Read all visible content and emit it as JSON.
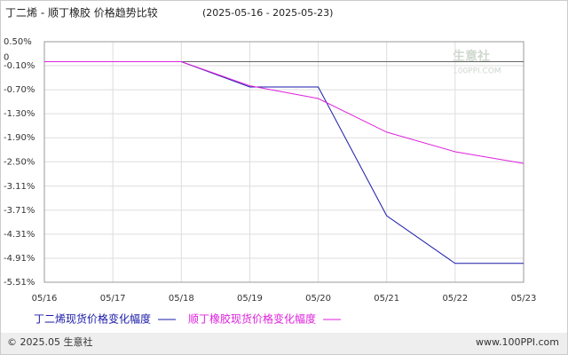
{
  "chart_data": {
    "type": "line",
    "title": "丁二烯 - 顺丁橡胶 价格趋势比较",
    "subtitle": "(2025-05-16 - 2025-05-23)",
    "categories": [
      "05/16",
      "05/17",
      "05/18",
      "05/19",
      "05/20",
      "05/21",
      "05/22",
      "05/23"
    ],
    "series": [
      {
        "name": "丁二烯现货价格变化幅度",
        "color": "#1a1aaa",
        "values": [
          0,
          0,
          0,
          -0.63,
          -0.63,
          -3.85,
          -5.04,
          -5.04
        ]
      },
      {
        "name": "顺丁橡胶现货价格变化幅度",
        "color": "#dd22dd",
        "values": [
          0,
          0,
          0,
          -0.6,
          -0.92,
          -1.76,
          -2.25,
          -2.54
        ]
      }
    ],
    "ylim": [
      0.5,
      -5.51
    ],
    "yticks": [
      {
        "value": 0.5,
        "label": "0.50%"
      },
      {
        "value": -0.1,
        "label": "-0.10%"
      },
      {
        "value": -0.7,
        "label": "-0.70%"
      },
      {
        "value": -1.3,
        "label": "-1.30%"
      },
      {
        "value": -1.9,
        "label": "-1.90%"
      },
      {
        "value": -2.5,
        "label": "-2.50%"
      },
      {
        "value": -3.11,
        "label": "-3.11%"
      },
      {
        "value": -3.71,
        "label": "-3.71%"
      },
      {
        "value": -4.31,
        "label": "-4.31%"
      },
      {
        "value": -4.91,
        "label": "-4.91%"
      },
      {
        "value": -5.51,
        "label": "-5.51%"
      }
    ],
    "zero_tick": 0,
    "grid": true,
    "watermark": [
      "生意社",
      "100PPI.COM"
    ],
    "footer": {
      "left": "© 2025.05 生意社",
      "right": "www.100PPI.com"
    }
  }
}
